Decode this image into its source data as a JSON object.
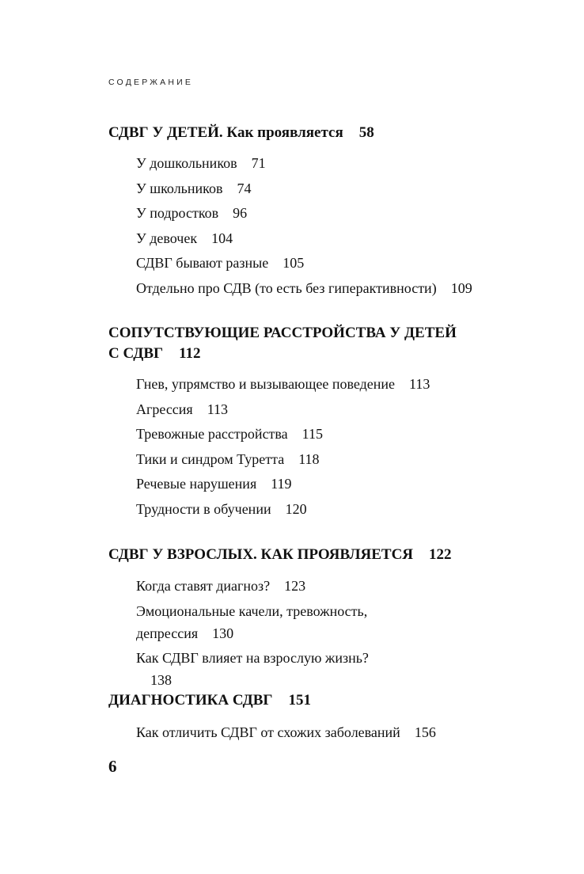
{
  "running_head": "СОДЕРЖАНИЕ",
  "sections": [
    {
      "title": "СДВГ У ДЕТЕЙ. Как проявляется",
      "page": "58",
      "items": [
        {
          "title": "У дошкольников",
          "page": "71"
        },
        {
          "title": "У школьников",
          "page": "74"
        },
        {
          "title": "У подростков",
          "page": "96"
        },
        {
          "title": "У девочек",
          "page": "104"
        },
        {
          "title": "СДВГ бывают разные",
          "page": "105"
        },
        {
          "title": "Отдельно про СДВ (то есть без гиперактивности)",
          "page": "109"
        }
      ]
    },
    {
      "title": "СОПУТСТВУЮЩИЕ РАССТРОЙСТВА У ДЕТЕЙ С СДВГ",
      "page": "112",
      "items": [
        {
          "title": "Гнев, упрямство и вызывающее поведение",
          "page": "113"
        },
        {
          "title": "Агрессия",
          "page": "113"
        },
        {
          "title": "Тревожные расстройства",
          "page": "115"
        },
        {
          "title": "Тики и синдром Туретта",
          "page": "118"
        },
        {
          "title": "Речевые нарушения",
          "page": "119"
        },
        {
          "title": "Трудности в обучении",
          "page": "120"
        }
      ]
    },
    {
      "title": "СДВГ У ВЗРОСЛЫХ. КАК ПРОЯВЛЯЕТСЯ",
      "page": "122",
      "items": [
        {
          "title": "Когда ставят диагноз?",
          "page": "123"
        },
        {
          "title": "Эмоциональные качели, тревожность, депрессия",
          "page": "130"
        },
        {
          "title": "Как СДВГ влияет на взрослую жизнь?",
          "page": "138"
        }
      ]
    },
    {
      "title": "ДИАГНОСТИКА СДВГ",
      "page": "151",
      "items": [
        {
          "title": "Как отличить СДВГ от схожих заболеваний",
          "page": "156"
        }
      ]
    }
  ],
  "folio": "6"
}
